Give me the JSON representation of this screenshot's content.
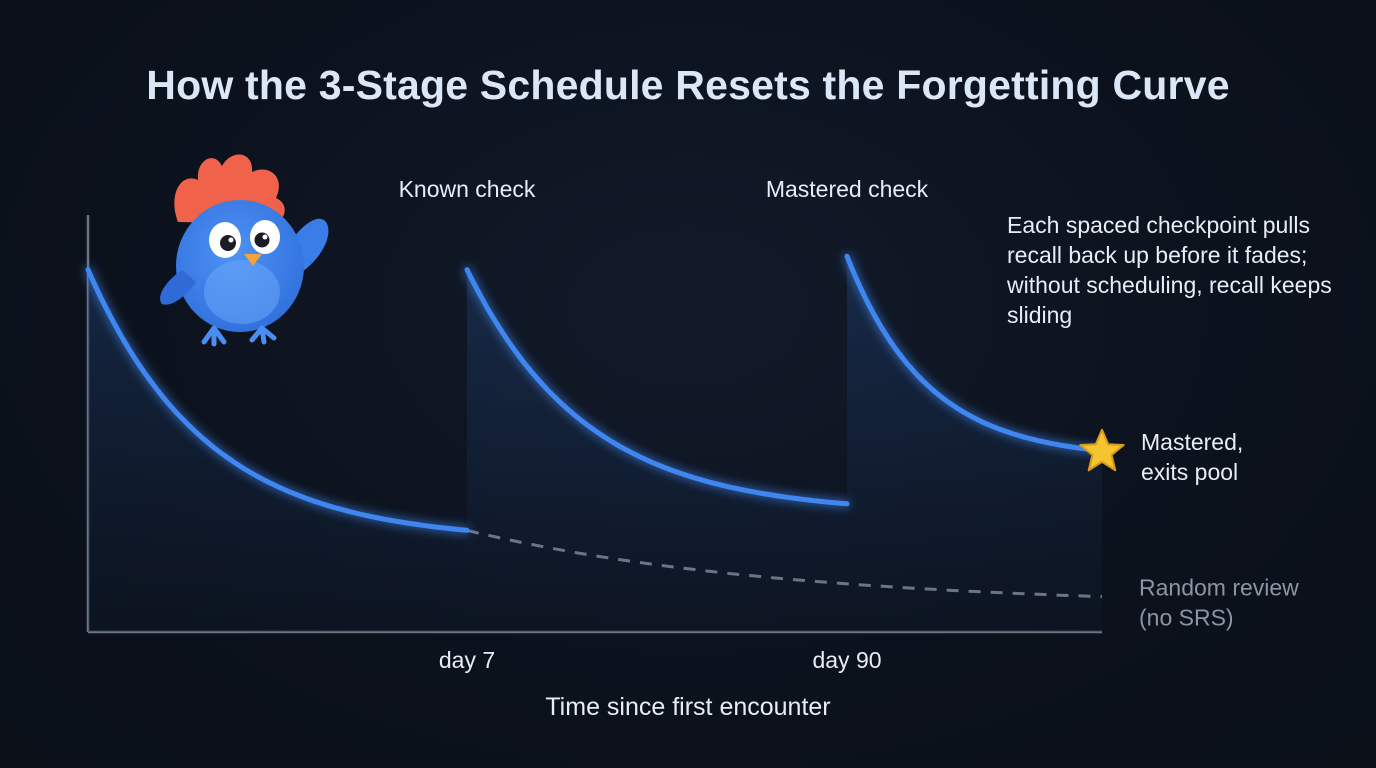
{
  "title": "How the 3-Stage Schedule Resets the Forgetting Curve",
  "annotation": "Each spaced checkpoint pulls recall back up before it fades; without scheduling, recall keeps sliding",
  "colors": {
    "background": "#0c121d",
    "curve": "#3f86f0",
    "baseline": "#6b7584",
    "star": "#f5c431",
    "mascot": "#3b82f6",
    "mascot_hair": "#f0624a"
  },
  "mascot_icon": "blue-bird-mascot",
  "chart_data": {
    "type": "line",
    "title": "How the 3-Stage Schedule Resets the Forgetting Curve",
    "xlabel": "Time since first encounter",
    "ylabel": "",
    "grid": false,
    "x_ticks": [
      "day 7",
      "day 90"
    ],
    "checkpoints": [
      {
        "label": "Known check",
        "tick": "day 7"
      },
      {
        "label": "Mastered check",
        "tick": "day 90"
      }
    ],
    "series": [
      {
        "style": "solid-glow",
        "segments": [
          {
            "start": 0.82,
            "end": 0.23
          },
          {
            "start": 0.82,
            "end": 0.29
          },
          {
            "start": 0.85,
            "end": 0.41
          }
        ]
      },
      {
        "name": "Random review\n(no SRS)",
        "style": "dashed",
        "start": 0.23,
        "end": 0.08
      }
    ],
    "end_marker": {
      "icon": "star-icon",
      "label": "Mastered,\nexits pool"
    }
  }
}
